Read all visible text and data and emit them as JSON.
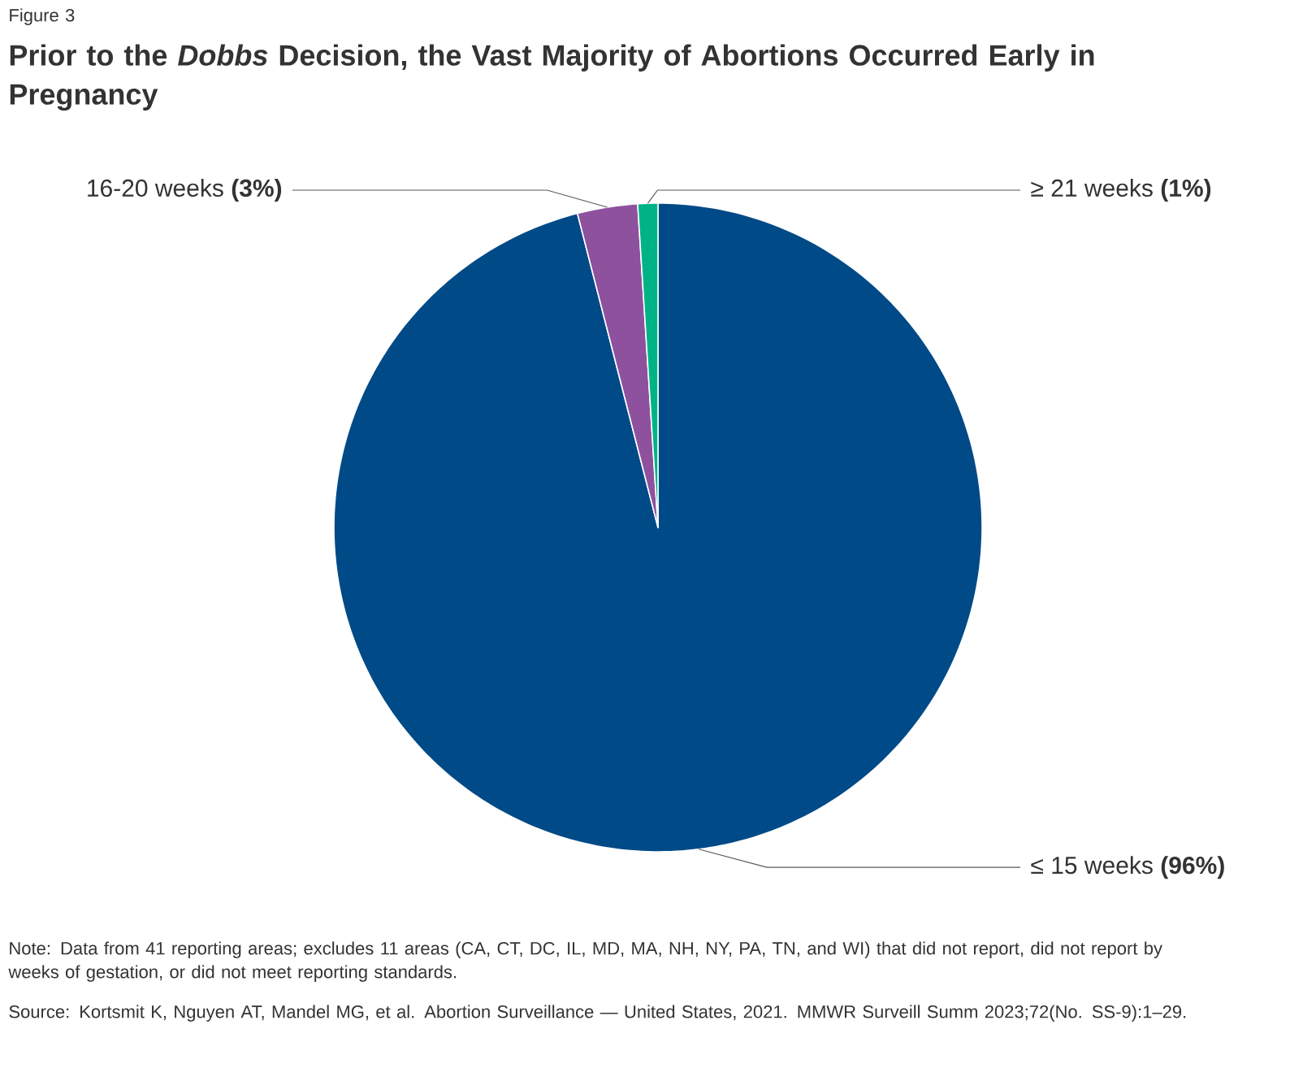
{
  "chart_data": {
    "type": "pie",
    "title": "Prior to the *Dobbs* Decision, the Vast Majority of Abortions Occurred Early in Pregnancy",
    "categories": [
      "≤ 15 weeks",
      "16-20 weeks",
      "≥ 21 weeks"
    ],
    "values": [
      96,
      3,
      1
    ],
    "colors": [
      "#004a87",
      "#8e519e",
      "#00b386"
    ],
    "value_labels": [
      "(96%)",
      "(3%)",
      "(1%)"
    ],
    "annotations": [
      "Figure 3",
      "Note: Data from 41 reporting areas; excludes 11 areas (CA, CT, DC, IL, MD, MA, NH, NY, PA, TN, and WI) that did not report, did not report by weeks of gestation, or did not meet reporting standards.",
      "Source: Kortsmit K, Nguyen AT, Mandel MG, et al. Abortion Surveillance — United States, 2021. MMWR Surveill Summ 2023;72(No. SS-9):1–29."
    ]
  }
}
